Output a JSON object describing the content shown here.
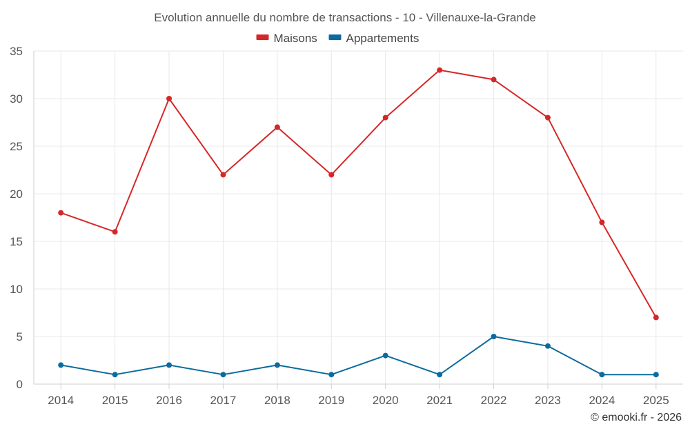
{
  "chart_data": {
    "type": "line",
    "title": "Evolution annuelle du nombre de transactions - 10 - Villenauxe-la-Grande",
    "categories": [
      "2014",
      "2015",
      "2016",
      "2017",
      "2018",
      "2019",
      "2020",
      "2021",
      "2022",
      "2023",
      "2024",
      "2025"
    ],
    "series": [
      {
        "name": "Maisons",
        "color": "#d62728",
        "values": [
          18,
          16,
          30,
          22,
          27,
          22,
          28,
          33,
          32,
          28,
          17,
          7
        ]
      },
      {
        "name": "Appartements",
        "color": "#0b6ba0",
        "values": [
          2,
          1,
          2,
          1,
          2,
          1,
          3,
          1,
          5,
          4,
          1,
          1
        ]
      }
    ],
    "ylim": [
      0,
      35
    ],
    "yticks": [
      0,
      5,
      10,
      15,
      20,
      25,
      30,
      35
    ],
    "xlabel": "",
    "ylabel": "",
    "grid": true,
    "legend": "top-center"
  },
  "credit": "© emooki.fr - 2026"
}
